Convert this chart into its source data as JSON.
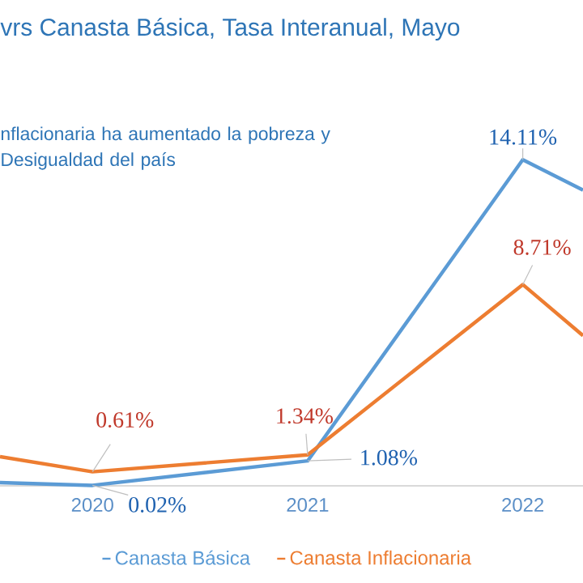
{
  "chart_data": {
    "type": "line",
    "title": "vrs Canasta  Básica, Tasa Interanual,  Mayo",
    "annotations": [
      "nflacionaria ha aumentado la pobreza y Desigualdad del país"
    ],
    "x": [
      2019.57,
      2020,
      2021,
      2022,
      2022.28
    ],
    "xlim": [
      2019.57,
      2022.28
    ],
    "xticks": [
      2020,
      2021,
      2022
    ],
    "series": [
      {
        "name": "Canasta Básica",
        "color": "#5b9bd5",
        "values": [
          0.14,
          0.02,
          1.08,
          14.11,
          12.8
        ],
        "value_labels": [
          null,
          "0.02%",
          "1.08%",
          "14.11%",
          null
        ]
      },
      {
        "name": "Canasta Inflacionaria",
        "color": "#ed7d31",
        "values": [
          1.26,
          0.61,
          1.34,
          8.71,
          6.5
        ],
        "value_labels": [
          null,
          "0.61%",
          "1.34%",
          "8.71%",
          null
        ]
      }
    ],
    "legend": "bottom"
  }
}
